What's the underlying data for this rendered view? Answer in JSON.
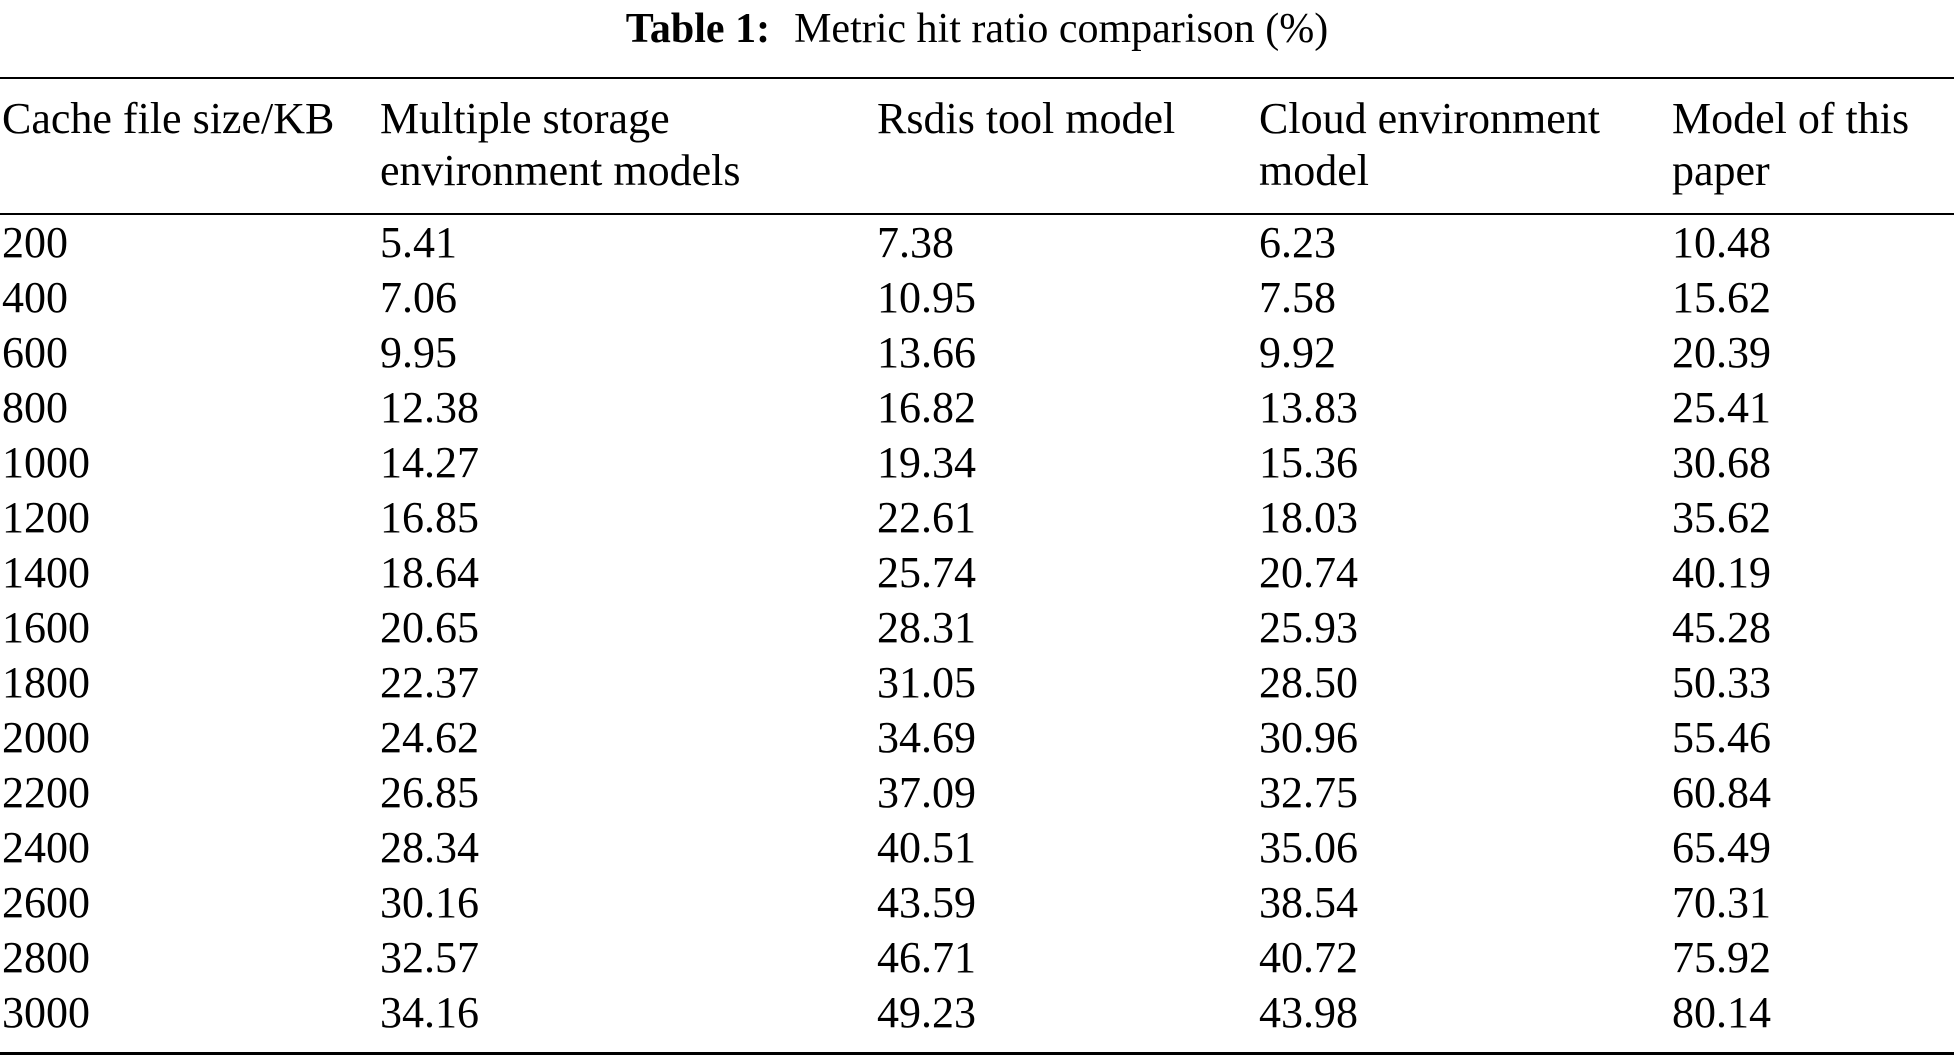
{
  "caption": {
    "label": "Table 1:",
    "text": "Metric hit ratio comparison (%)"
  },
  "table": {
    "headers": [
      "Cache file size/KB",
      "Multiple storage\nenvironment models",
      "Rsdis tool model",
      "Cloud environment\nmodel",
      "Model of this\npaper"
    ],
    "rows": [
      [
        "200",
        "5.41",
        "7.38",
        "6.23",
        "10.48"
      ],
      [
        "400",
        "7.06",
        "10.95",
        "7.58",
        "15.62"
      ],
      [
        "600",
        "9.95",
        "13.66",
        "9.92",
        "20.39"
      ],
      [
        "800",
        "12.38",
        "16.82",
        "13.83",
        "25.41"
      ],
      [
        "1000",
        "14.27",
        "19.34",
        "15.36",
        "30.68"
      ],
      [
        "1200",
        "16.85",
        "22.61",
        "18.03",
        "35.62"
      ],
      [
        "1400",
        "18.64",
        "25.74",
        "20.74",
        "40.19"
      ],
      [
        "1600",
        "20.65",
        "28.31",
        "25.93",
        "45.28"
      ],
      [
        "1800",
        "22.37",
        "31.05",
        "28.50",
        "50.33"
      ],
      [
        "2000",
        "24.62",
        "34.69",
        "30.96",
        "55.46"
      ],
      [
        "2200",
        "26.85",
        "37.09",
        "32.75",
        "60.84"
      ],
      [
        "2400",
        "28.34",
        "40.51",
        "35.06",
        "65.49"
      ],
      [
        "2600",
        "30.16",
        "43.59",
        "38.54",
        "70.31"
      ],
      [
        "2800",
        "32.57",
        "46.71",
        "40.72",
        "75.92"
      ],
      [
        "3000",
        "34.16",
        "49.23",
        "43.98",
        "80.14"
      ]
    ]
  },
  "colors": {
    "background": "#ffffff",
    "text": "#000000",
    "rule": "#000000"
  }
}
